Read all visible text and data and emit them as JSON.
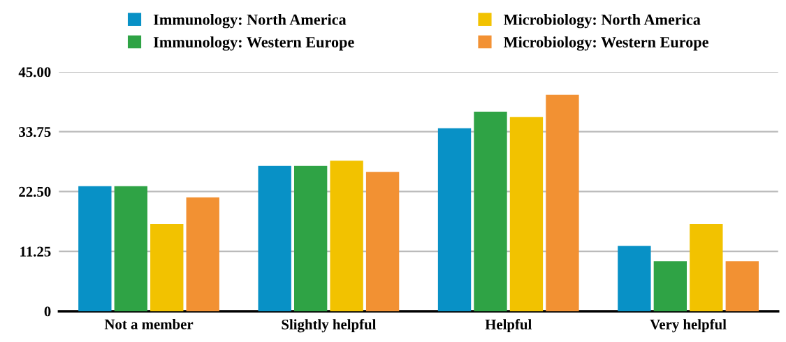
{
  "chart_data": {
    "type": "bar",
    "categories": [
      "Not a member",
      "Slightly helpful",
      "Helpful",
      "Very helpful"
    ],
    "series": [
      {
        "name": "Immunology: North America",
        "color": "#0891c6",
        "values": [
          23.5,
          27.3,
          34.4,
          12.3
        ]
      },
      {
        "name": "Immunology: Western Europe",
        "color": "#2fa345",
        "values": [
          23.5,
          27.3,
          37.5,
          9.4
        ]
      },
      {
        "name": "Microbiology: North America",
        "color": "#f2c200",
        "values": [
          16.4,
          28.3,
          36.5,
          16.4
        ]
      },
      {
        "name": "Microbiology: Western Europe",
        "color": "#f29133",
        "values": [
          21.4,
          26.2,
          40.7,
          9.4
        ]
      }
    ],
    "ylim": [
      0,
      45
    ],
    "yticks": [
      0,
      {
        "value": 11.25,
        "label": "11.25"
      },
      {
        "value": 22.5,
        "label": "22.50"
      },
      {
        "value": 33.75,
        "label": "33.75"
      },
      {
        "value": 45,
        "label": "45.00"
      }
    ],
    "grid": "y",
    "legend": "top"
  }
}
